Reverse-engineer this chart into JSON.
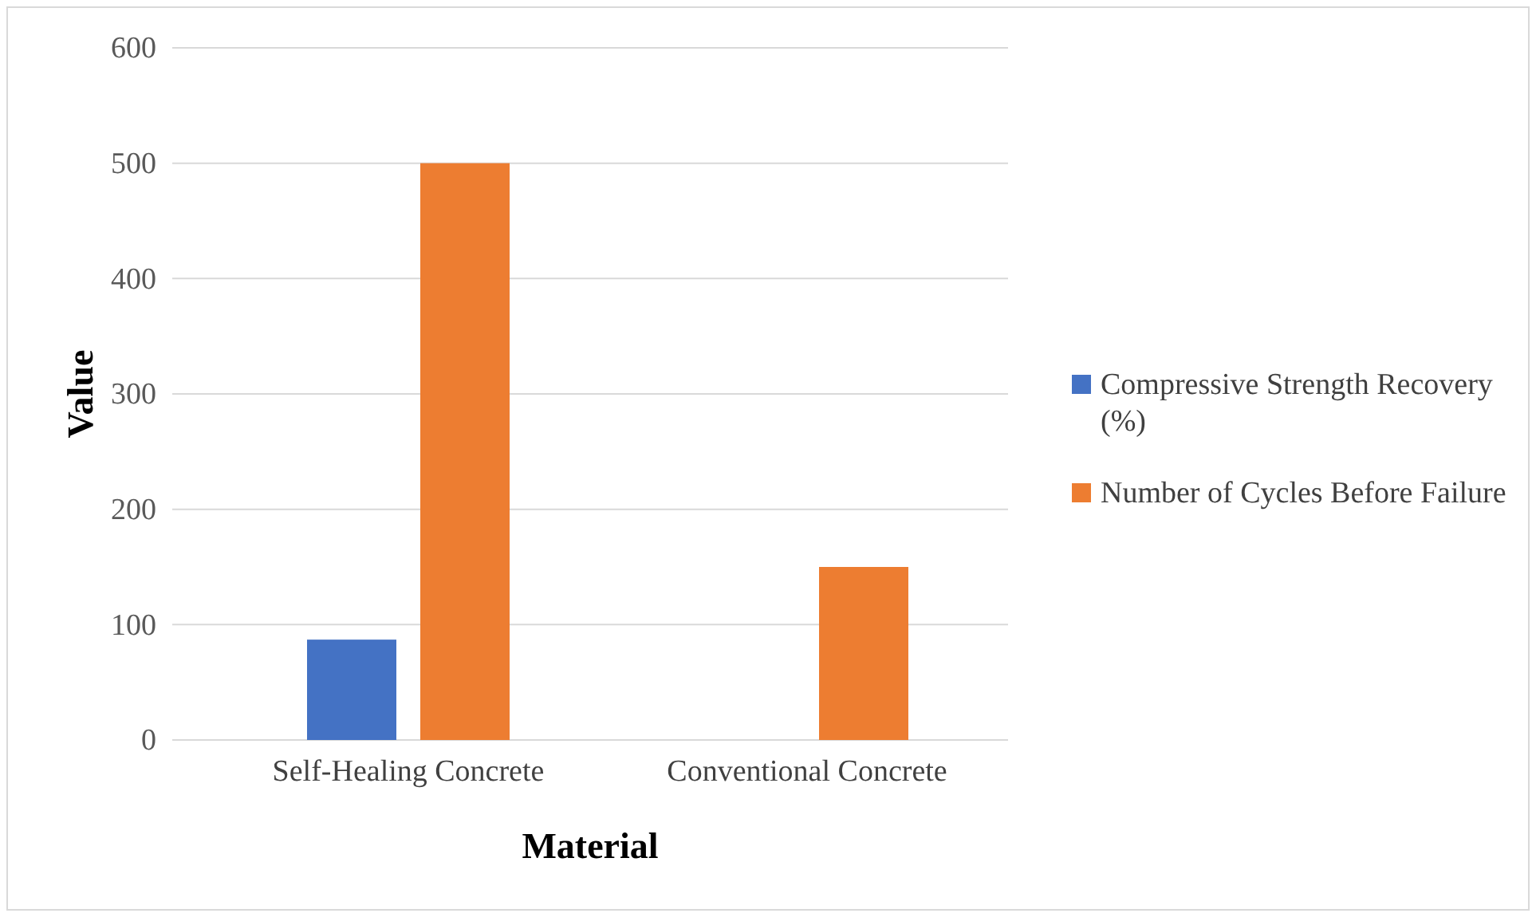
{
  "chart_data": {
    "type": "bar",
    "xlabel": "Material",
    "ylabel": "Value",
    "categories": [
      "Self-Healing Concrete",
      "Conventional Concrete"
    ],
    "series": [
      {
        "name": "Compressive Strength Recovery (%)",
        "color": "#4472c4",
        "values": [
          87,
          null
        ]
      },
      {
        "name": "Number of Cycles Before Failure",
        "color": "#ed7d31",
        "values": [
          500,
          150
        ]
      }
    ],
    "ylim": [
      0,
      600
    ],
    "yticks": [
      0,
      100,
      200,
      300,
      400,
      500,
      600
    ],
    "grid": "y",
    "legend": "right"
  }
}
